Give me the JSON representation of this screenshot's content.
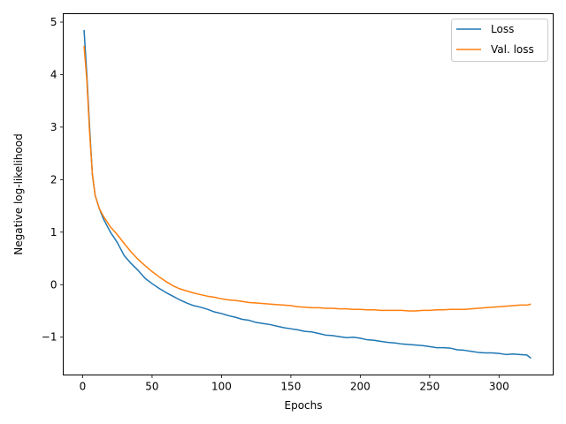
{
  "chart_data": {
    "type": "line",
    "title": "",
    "xlabel": "Epochs",
    "ylabel": "Negative log-likelihood",
    "xlim": [
      -14,
      339
    ],
    "ylim": [
      -1.72,
      5.16
    ],
    "xticks": [
      0,
      50,
      100,
      150,
      200,
      250,
      300
    ],
    "xtick_labels": [
      "0",
      "50",
      "100",
      "150",
      "200",
      "250",
      "300"
    ],
    "yticks": [
      -1,
      0,
      1,
      2,
      3,
      4,
      5
    ],
    "ytick_labels": [
      "−1",
      "0",
      "1",
      "2",
      "3",
      "4",
      "5"
    ],
    "grid": false,
    "legend_position": "top-right",
    "series": [
      {
        "name": "Loss",
        "color": "#1f77b4",
        "x": [
          1,
          3,
          5,
          7,
          9,
          12,
          15,
          20,
          25,
          30,
          35,
          40,
          45,
          50,
          55,
          60,
          65,
          70,
          75,
          80,
          85,
          90,
          95,
          100,
          105,
          110,
          115,
          120,
          125,
          130,
          135,
          140,
          145,
          150,
          155,
          160,
          165,
          170,
          175,
          180,
          185,
          190,
          195,
          200,
          205,
          210,
          215,
          220,
          225,
          230,
          235,
          240,
          245,
          250,
          255,
          260,
          265,
          270,
          275,
          280,
          285,
          290,
          295,
          300,
          305,
          310,
          315,
          320,
          323
        ],
        "y": [
          4.85,
          4.0,
          3.0,
          2.1,
          1.7,
          1.45,
          1.25,
          1.0,
          0.8,
          0.55,
          0.4,
          0.27,
          0.12,
          0.02,
          -0.07,
          -0.15,
          -0.22,
          -0.29,
          -0.35,
          -0.4,
          -0.43,
          -0.47,
          -0.52,
          -0.55,
          -0.59,
          -0.62,
          -0.66,
          -0.68,
          -0.72,
          -0.74,
          -0.76,
          -0.79,
          -0.82,
          -0.84,
          -0.86,
          -0.89,
          -0.9,
          -0.93,
          -0.96,
          -0.97,
          -0.99,
          -1.01,
          -1.0,
          -1.02,
          -1.05,
          -1.06,
          -1.08,
          -1.1,
          -1.11,
          -1.13,
          -1.14,
          -1.15,
          -1.16,
          -1.18,
          -1.2,
          -1.2,
          -1.21,
          -1.24,
          -1.25,
          -1.27,
          -1.29,
          -1.3,
          -1.3,
          -1.31,
          -1.33,
          -1.32,
          -1.33,
          -1.34,
          -1.4
        ]
      },
      {
        "name": "Val. loss",
        "color": "#ff7f0e",
        "x": [
          1,
          3,
          5,
          7,
          9,
          12,
          15,
          20,
          25,
          30,
          35,
          40,
          45,
          50,
          55,
          60,
          65,
          70,
          75,
          80,
          85,
          90,
          95,
          100,
          105,
          110,
          115,
          120,
          125,
          130,
          135,
          140,
          145,
          150,
          155,
          160,
          165,
          170,
          175,
          180,
          185,
          190,
          195,
          200,
          205,
          210,
          215,
          220,
          225,
          230,
          235,
          240,
          245,
          250,
          255,
          260,
          265,
          270,
          275,
          280,
          285,
          290,
          295,
          300,
          305,
          310,
          315,
          320,
          323
        ],
        "y": [
          4.55,
          3.9,
          2.9,
          2.1,
          1.7,
          1.45,
          1.3,
          1.1,
          0.95,
          0.78,
          0.62,
          0.48,
          0.36,
          0.25,
          0.15,
          0.06,
          -0.02,
          -0.08,
          -0.12,
          -0.16,
          -0.19,
          -0.22,
          -0.24,
          -0.27,
          -0.29,
          -0.3,
          -0.32,
          -0.34,
          -0.35,
          -0.36,
          -0.37,
          -0.38,
          -0.39,
          -0.4,
          -0.42,
          -0.43,
          -0.44,
          -0.44,
          -0.45,
          -0.45,
          -0.46,
          -0.46,
          -0.47,
          -0.47,
          -0.48,
          -0.48,
          -0.49,
          -0.49,
          -0.49,
          -0.49,
          -0.5,
          -0.5,
          -0.49,
          -0.49,
          -0.48,
          -0.48,
          -0.47,
          -0.47,
          -0.47,
          -0.46,
          -0.45,
          -0.44,
          -0.43,
          -0.42,
          -0.41,
          -0.4,
          -0.39,
          -0.39,
          -0.37
        ]
      }
    ]
  }
}
